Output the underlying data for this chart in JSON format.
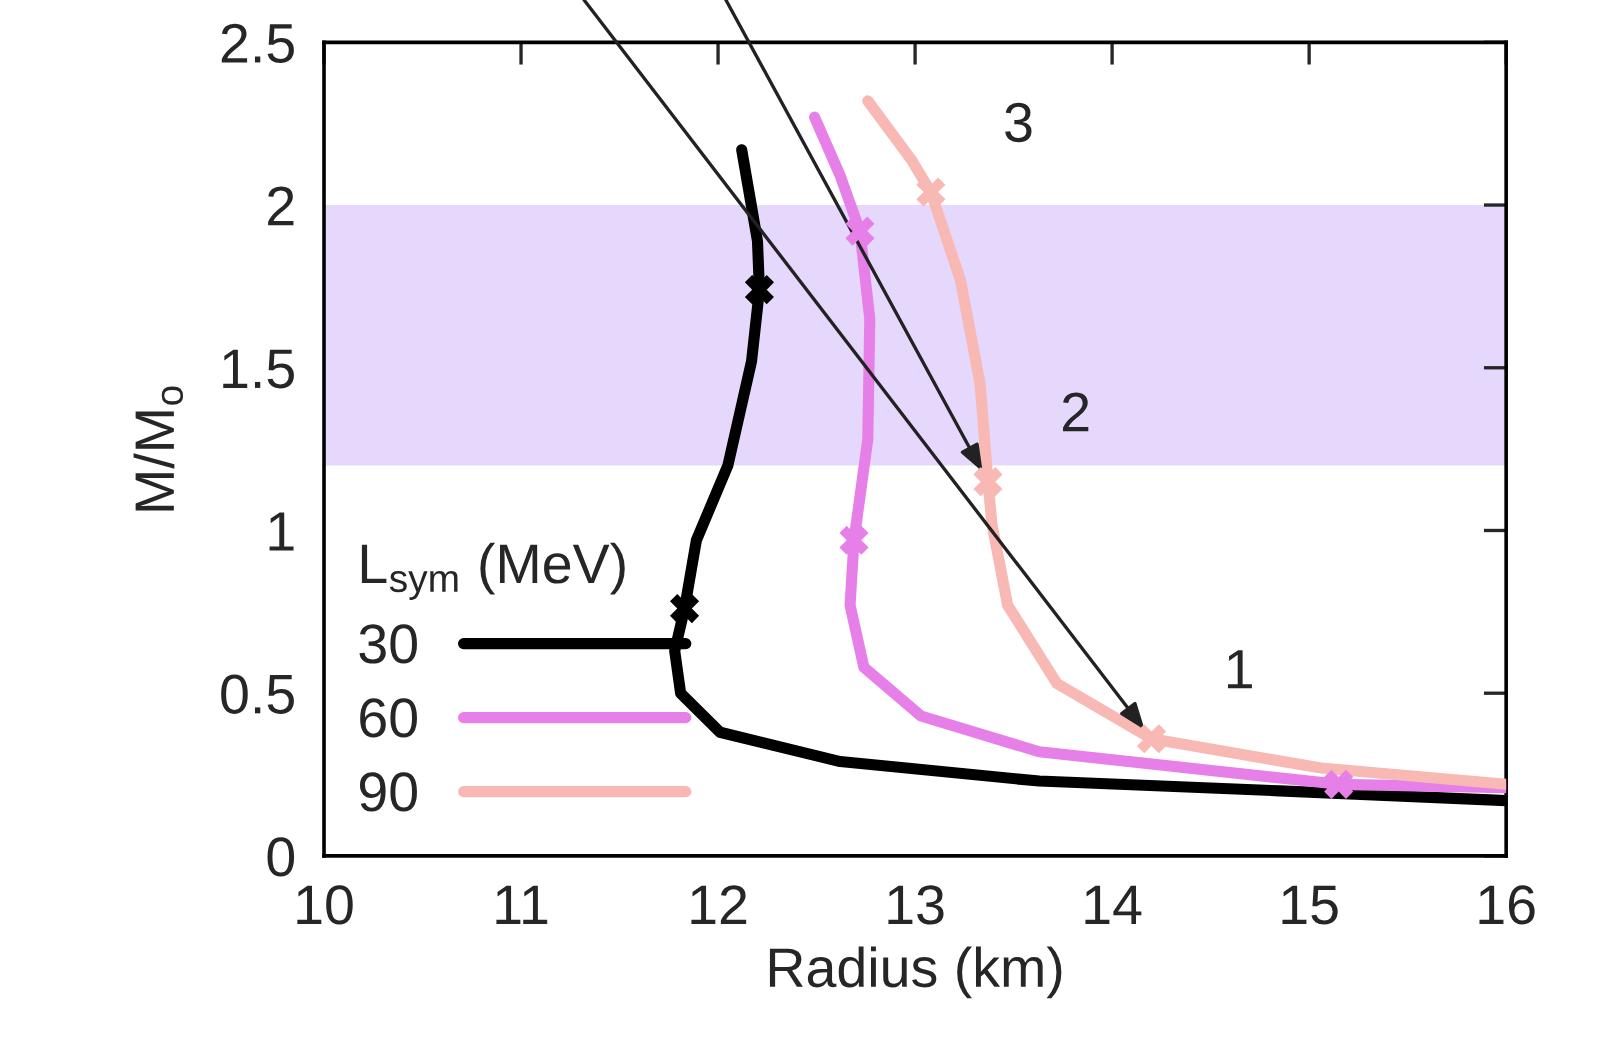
{
  "chart_data": {
    "type": "line",
    "xlabel": "Radius (km)",
    "ylabel": "M/M$_{o}$",
    "legend_title": "L$_{sym}$ (MeV)",
    "xlim": [
      10,
      16
    ],
    "ylim": [
      0,
      2.5
    ],
    "xticks": [
      10,
      11,
      12,
      13,
      14,
      15,
      16
    ],
    "yticks": [
      0,
      0.5,
      1,
      1.5,
      2,
      2.5
    ],
    "grid": false,
    "legend": "bottom left",
    "line_style": "solid",
    "marker": "none",
    "bands": [
      {
        "axis": "y",
        "from": 1.2,
        "to": 2.0,
        "color": "#e6d8fc"
      }
    ],
    "series": [
      {
        "name": "30",
        "color": "#000000",
        "x": [
          12.12,
          12.2,
          12.21,
          12.17,
          12.05,
          11.89,
          11.83,
          11.78,
          11.81,
          12.01,
          12.62,
          13.63,
          14.85,
          16
        ],
        "values": [
          2.17,
          1.89,
          1.74,
          1.52,
          1.2,
          0.97,
          0.76,
          0.63,
          0.5,
          0.38,
          0.29,
          0.23,
          0.2,
          0.17
        ]
      },
      {
        "name": "60",
        "color": "#e680e8",
        "x": [
          12.49,
          12.62,
          12.72,
          12.77,
          12.76,
          12.69,
          12.67,
          12.74,
          13.03,
          13.63,
          15.15,
          16
        ],
        "values": [
          2.27,
          2.09,
          1.92,
          1.65,
          1.28,
          0.97,
          0.77,
          0.58,
          0.43,
          0.32,
          0.22,
          0.21
        ]
      },
      {
        "name": "90",
        "color": "#f8b8b4",
        "x": [
          12.76,
          12.98,
          13.08,
          13.23,
          13.33,
          13.37,
          13.39,
          13.47,
          13.72,
          14.2,
          15.06,
          16
        ],
        "values": [
          2.32,
          2.14,
          2.04,
          1.77,
          1.45,
          1.15,
          1.02,
          0.77,
          0.53,
          0.36,
          0.27,
          0.22
        ]
      },
      {
        "type": "scatter",
        "marker": "cross",
        "color": "#000000",
        "x": [
          11.83,
          12.21
        ],
        "values": [
          0.76,
          1.74
        ]
      },
      {
        "type": "scatter",
        "marker": "cross",
        "color": "#e680e8",
        "x": [
          12.69,
          12.72,
          15.15
        ],
        "values": [
          0.97,
          1.92,
          0.22
        ]
      },
      {
        "type": "scatter",
        "marker": "cross",
        "color": "#f8b8b4",
        "x": [
          14.2,
          13.37,
          13.08
        ],
        "values": [
          0.36,
          1.15,
          2.04
        ]
      }
    ],
    "annotations": [
      {
        "text": "1",
        "x": 14.2,
        "y": 0.36
      },
      {
        "text": "2",
        "x": 13.37,
        "y": 1.15
      },
      {
        "text": "3",
        "x": 13.08,
        "y": 2.04
      }
    ]
  }
}
